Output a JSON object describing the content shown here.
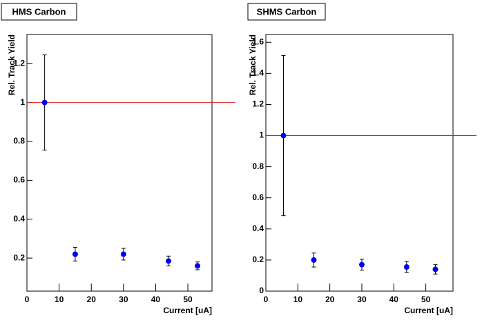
{
  "chart_data": [
    {
      "type": "scatter",
      "title": "HMS Carbon",
      "x_label": "Current [uA]",
      "y_label": "Rel. Track Yield",
      "xlim": [
        0,
        57.5
      ],
      "ylim": [
        0.03,
        1.35
      ],
      "xticks": [
        0,
        10,
        20,
        30,
        40,
        50
      ],
      "yticks": [
        0.2,
        0.4,
        0.6,
        0.8,
        1,
        1.2
      ],
      "series": [
        {
          "color": "#0000ee",
          "x": [
            5.5,
            15,
            30,
            44,
            53
          ],
          "values": [
            1.0,
            0.22,
            0.22,
            0.185,
            0.16
          ],
          "errors": [
            0.245,
            0.035,
            0.03,
            0.025,
            0.02
          ]
        }
      ],
      "reference_line": {
        "value": 1,
        "color": "#d42020"
      }
    },
    {
      "type": "scatter",
      "title": "SHMS Carbon",
      "x_label": "Current [uA]",
      "y_label": "Rel. Track Yield",
      "xlim": [
        0,
        58.5
      ],
      "ylim": [
        0,
        1.65
      ],
      "xticks": [
        0,
        10,
        20,
        30,
        40,
        50
      ],
      "yticks": [
        0,
        0.2,
        0.4,
        0.6,
        0.8,
        1,
        1.2,
        1.4,
        1.6
      ],
      "series": [
        {
          "color": "#0000ee",
          "x": [
            5.5,
            15,
            30,
            44,
            53
          ],
          "values": [
            1.0,
            0.2,
            0.17,
            0.155,
            0.14
          ],
          "errors": [
            0.515,
            0.045,
            0.035,
            0.035,
            0.03
          ]
        }
      ],
      "reference_line": {
        "value": 1,
        "color": "#d42020"
      }
    }
  ]
}
